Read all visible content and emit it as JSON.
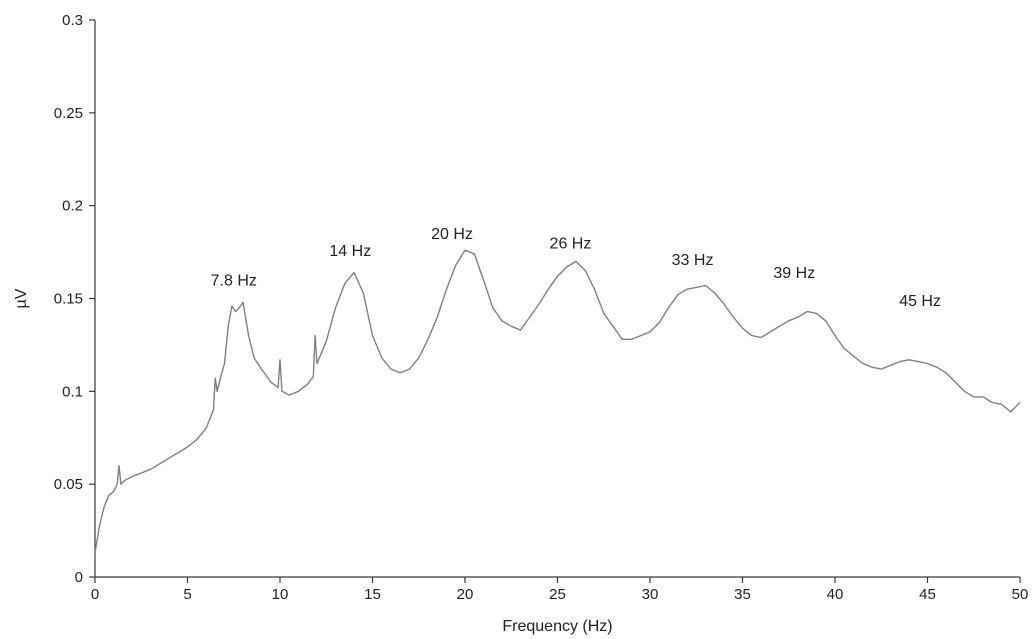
{
  "chart_data": {
    "type": "line",
    "title": "",
    "xlabel": "Frequency (Hz)",
    "ylabel": "µV",
    "xlim": [
      0,
      50
    ],
    "ylim": [
      0,
      0.3
    ],
    "x_ticks": [
      0,
      5,
      10,
      15,
      20,
      25,
      30,
      35,
      40,
      45,
      50
    ],
    "x_tick_labels": [
      "0",
      "5",
      "10",
      "15",
      "20",
      "25",
      "30",
      "35",
      "40",
      "45",
      "50"
    ],
    "y_ticks": [
      0,
      0.05,
      0.1,
      0.15,
      0.2,
      0.25,
      0.3
    ],
    "y_tick_labels": [
      "0",
      "0.05",
      "0.1",
      "0.15",
      "0.2",
      "0.25",
      "0.3"
    ],
    "grid": false,
    "line_color": "#808080",
    "series": [
      {
        "x": [
          0,
          0.25,
          0.5,
          0.75,
          1.0,
          1.2,
          1.3,
          1.4,
          1.6,
          2.0,
          2.5,
          3.0,
          3.5,
          4.0,
          4.5,
          5.0,
          5.5,
          6.0,
          6.2,
          6.4,
          6.5,
          6.6,
          6.8,
          7.0,
          7.2,
          7.4,
          7.6,
          7.8,
          8.0,
          8.3,
          8.6,
          9.0,
          9.5,
          9.9,
          10.0,
          10.1,
          10.5,
          11.0,
          11.5,
          11.8,
          11.9,
          12.0,
          12.5,
          13.0,
          13.5,
          14.0,
          14.5,
          15.0,
          15.5,
          16.0,
          16.5,
          17.0,
          17.5,
          18.0,
          18.5,
          19.0,
          19.5,
          20.0,
          20.5,
          21.0,
          21.5,
          22.0,
          22.5,
          23.0,
          23.5,
          24.0,
          24.5,
          25.0,
          25.5,
          26.0,
          26.5,
          27.0,
          27.5,
          28.0,
          28.5,
          29.0,
          29.5,
          30.0,
          30.5,
          31.0,
          31.5,
          32.0,
          32.5,
          33.0,
          33.5,
          34.0,
          34.5,
          35.0,
          35.5,
          36.0,
          36.5,
          37.0,
          37.5,
          38.0,
          38.5,
          39.0,
          39.5,
          40.0,
          40.5,
          41.0,
          41.5,
          42.0,
          42.5,
          43.0,
          43.5,
          44.0,
          44.5,
          45.0,
          45.5,
          46.0,
          46.5,
          47.0,
          47.5,
          48.0,
          48.5,
          49.0,
          49.5,
          50.0
        ],
        "values": [
          0.013,
          0.028,
          0.038,
          0.044,
          0.046,
          0.05,
          0.06,
          0.05,
          0.052,
          0.054,
          0.056,
          0.058,
          0.061,
          0.064,
          0.067,
          0.07,
          0.074,
          0.08,
          0.085,
          0.09,
          0.107,
          0.1,
          0.108,
          0.115,
          0.135,
          0.146,
          0.143,
          0.145,
          0.148,
          0.13,
          0.118,
          0.112,
          0.105,
          0.102,
          0.117,
          0.1,
          0.098,
          0.1,
          0.104,
          0.108,
          0.13,
          0.115,
          0.127,
          0.145,
          0.158,
          0.164,
          0.153,
          0.13,
          0.118,
          0.112,
          0.11,
          0.112,
          0.118,
          0.128,
          0.14,
          0.155,
          0.168,
          0.176,
          0.174,
          0.16,
          0.145,
          0.138,
          0.135,
          0.133,
          0.14,
          0.147,
          0.155,
          0.162,
          0.167,
          0.17,
          0.165,
          0.155,
          0.142,
          0.135,
          0.128,
          0.128,
          0.13,
          0.132,
          0.137,
          0.145,
          0.152,
          0.155,
          0.156,
          0.157,
          0.153,
          0.147,
          0.14,
          0.134,
          0.13,
          0.129,
          0.132,
          0.135,
          0.138,
          0.14,
          0.143,
          0.142,
          0.138,
          0.13,
          0.123,
          0.119,
          0.115,
          0.113,
          0.112,
          0.114,
          0.116,
          0.117,
          0.116,
          0.115,
          0.113,
          0.11,
          0.105,
          0.1,
          0.097,
          0.097,
          0.094,
          0.093,
          0.089,
          0.094
        ]
      }
    ],
    "annotations": [
      {
        "text": "7.8 Hz",
        "x": 7.5,
        "y": 0.157
      },
      {
        "text": "14 Hz",
        "x": 13.8,
        "y": 0.173
      },
      {
        "text": "20 Hz",
        "x": 19.3,
        "y": 0.182
      },
      {
        "text": "26 Hz",
        "x": 25.7,
        "y": 0.177
      },
      {
        "text": "33 Hz",
        "x": 32.3,
        "y": 0.168
      },
      {
        "text": "39 Hz",
        "x": 37.8,
        "y": 0.161
      },
      {
        "text": "45 Hz",
        "x": 44.6,
        "y": 0.146
      }
    ]
  }
}
